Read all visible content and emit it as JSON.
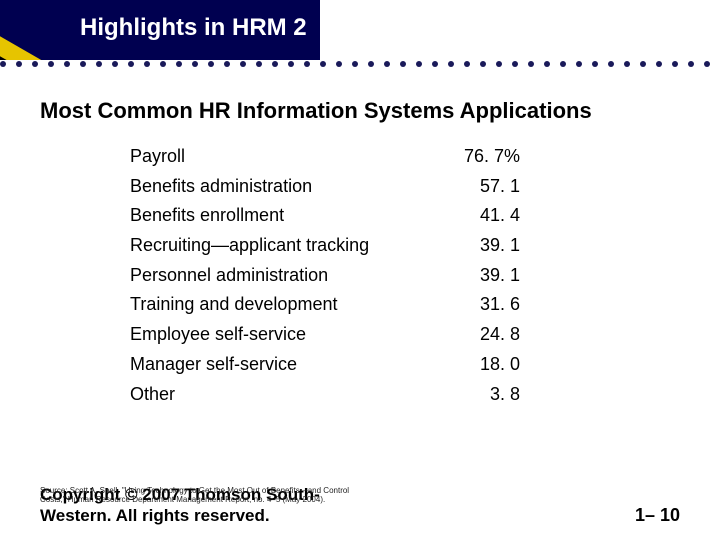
{
  "header": {
    "title": "Highlights in HRM 2",
    "bg_color": "#000050",
    "accent_colors": [
      "#e6c400",
      "#000000",
      "#4a7a1a"
    ]
  },
  "main": {
    "heading": "Most Common HR Information Systems Applications",
    "rows": [
      {
        "label": "Payroll",
        "value": "76. 7%"
      },
      {
        "label": "Benefits administration",
        "value": "57. 1"
      },
      {
        "label": "Benefits enrollment",
        "value": "41. 4"
      },
      {
        "label": "Recruiting—applicant tracking",
        "value": "39. 1"
      },
      {
        "label": "Personnel administration",
        "value": "39. 1"
      },
      {
        "label": "Training and development",
        "value": "31. 6"
      },
      {
        "label": "Employee self-service",
        "value": "24. 8"
      },
      {
        "label": "Manager self-service",
        "value": "18. 0"
      },
      {
        "label": "Other",
        "value": "  3. 8"
      }
    ]
  },
  "footer": {
    "source_line1": "Source: Scott A. Snell, \"Using Technology to Get the Most Out of Benefits—and Control",
    "source_line2": "Costs,\" Human Resource Department Management Report, no. 4–5 (May 2004).",
    "copyright_line1": "Copyright © 2007 Thomson South-",
    "copyright_line2": "Western. All rights reserved.",
    "page_number": "1– 10"
  },
  "style": {
    "body_font": "Arial",
    "heading_fontsize": 22,
    "row_fontsize": 18,
    "label_col_width": 310,
    "value_col_width": 80,
    "background": "#ffffff",
    "text_color": "#000000"
  }
}
